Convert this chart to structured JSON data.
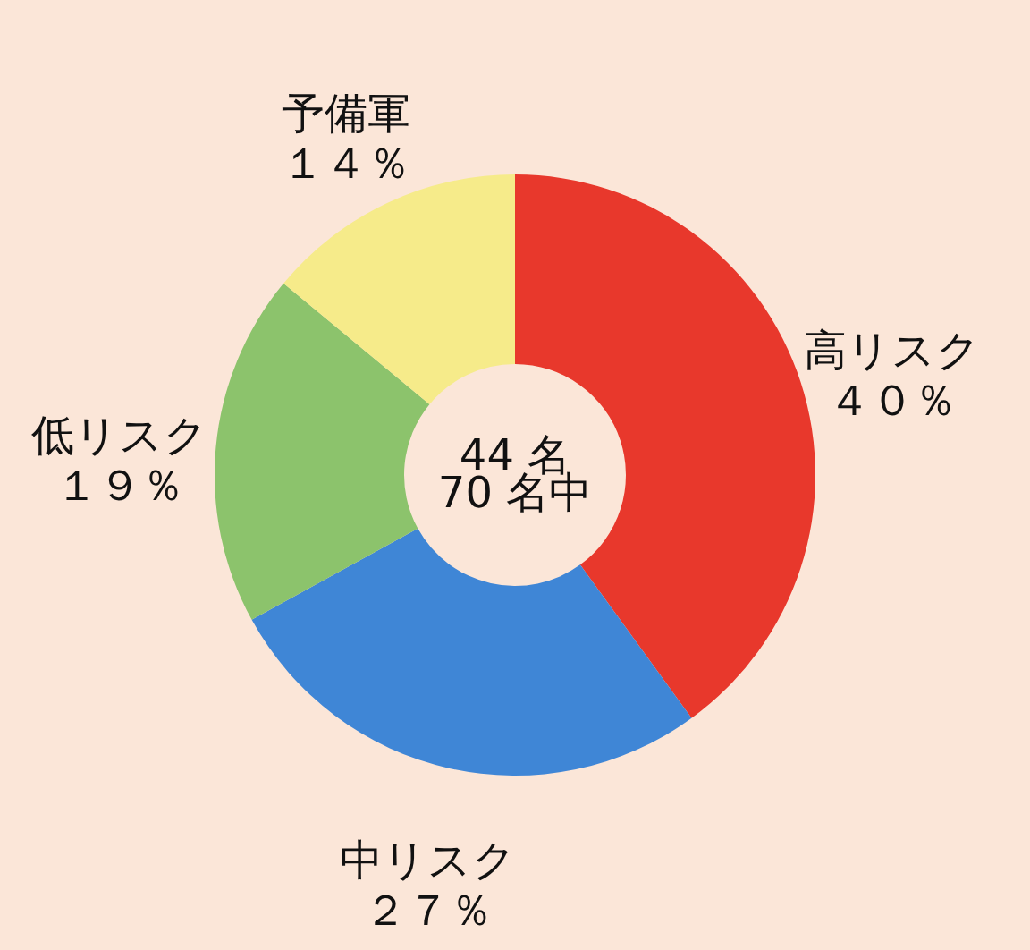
{
  "chart_data": {
    "type": "donut",
    "categories": [
      "高リスク",
      "中リスク",
      "低リスク",
      "予備軍"
    ],
    "values": [
      40,
      27,
      19,
      14
    ],
    "colors": [
      "#e8382c",
      "#3f86d6",
      "#8cc36c",
      "#f6eb8a"
    ],
    "value_labels": [
      "４０％",
      "２７％",
      "１９％",
      "１４％"
    ],
    "annotations": [
      "44 名",
      "70 名中"
    ]
  }
}
